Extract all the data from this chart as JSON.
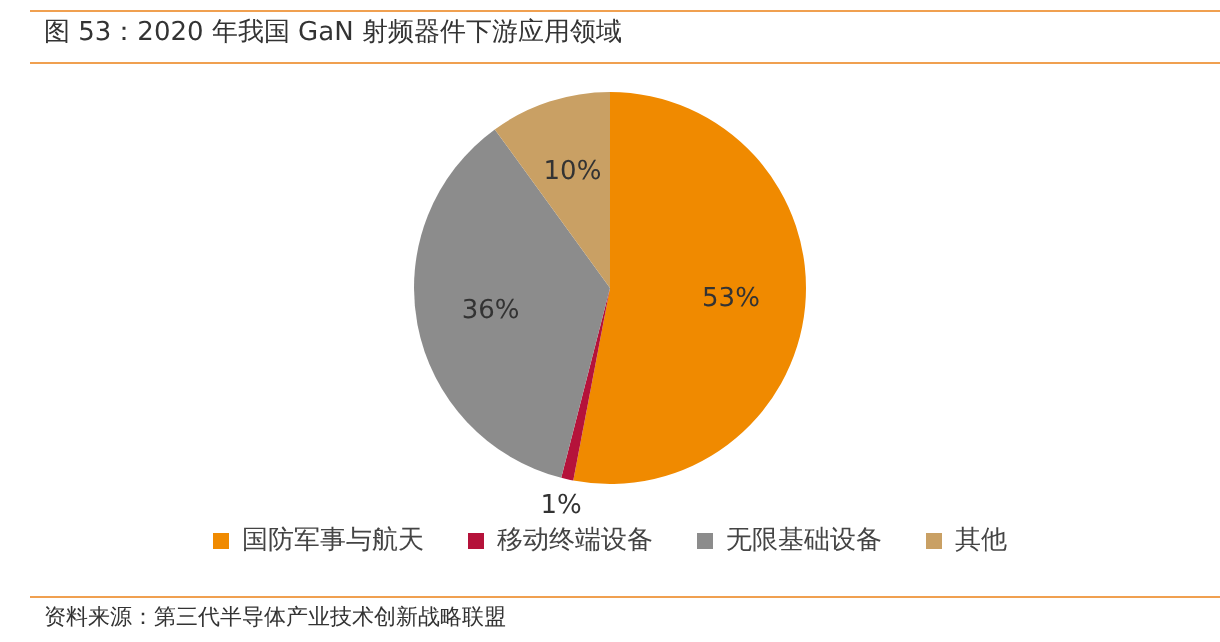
{
  "chart_data": {
    "type": "pie",
    "title": "图 53：2020 年我国 GaN 射频器件下游应用领域",
    "categories": [
      "国防军事与航天",
      "移动终端设备",
      "无限基础设备",
      "其他"
    ],
    "values": [
      53,
      1,
      36,
      10
    ],
    "colors": [
      "#f08a00",
      "#b5123a",
      "#8c8c8c",
      "#c9a064"
    ],
    "value_labels": [
      "53%",
      "1%",
      "36%",
      "10%"
    ],
    "legend": "bottom",
    "annotations": [
      "资料来源：第三代半导体产业技术创新战略联盟"
    ]
  }
}
